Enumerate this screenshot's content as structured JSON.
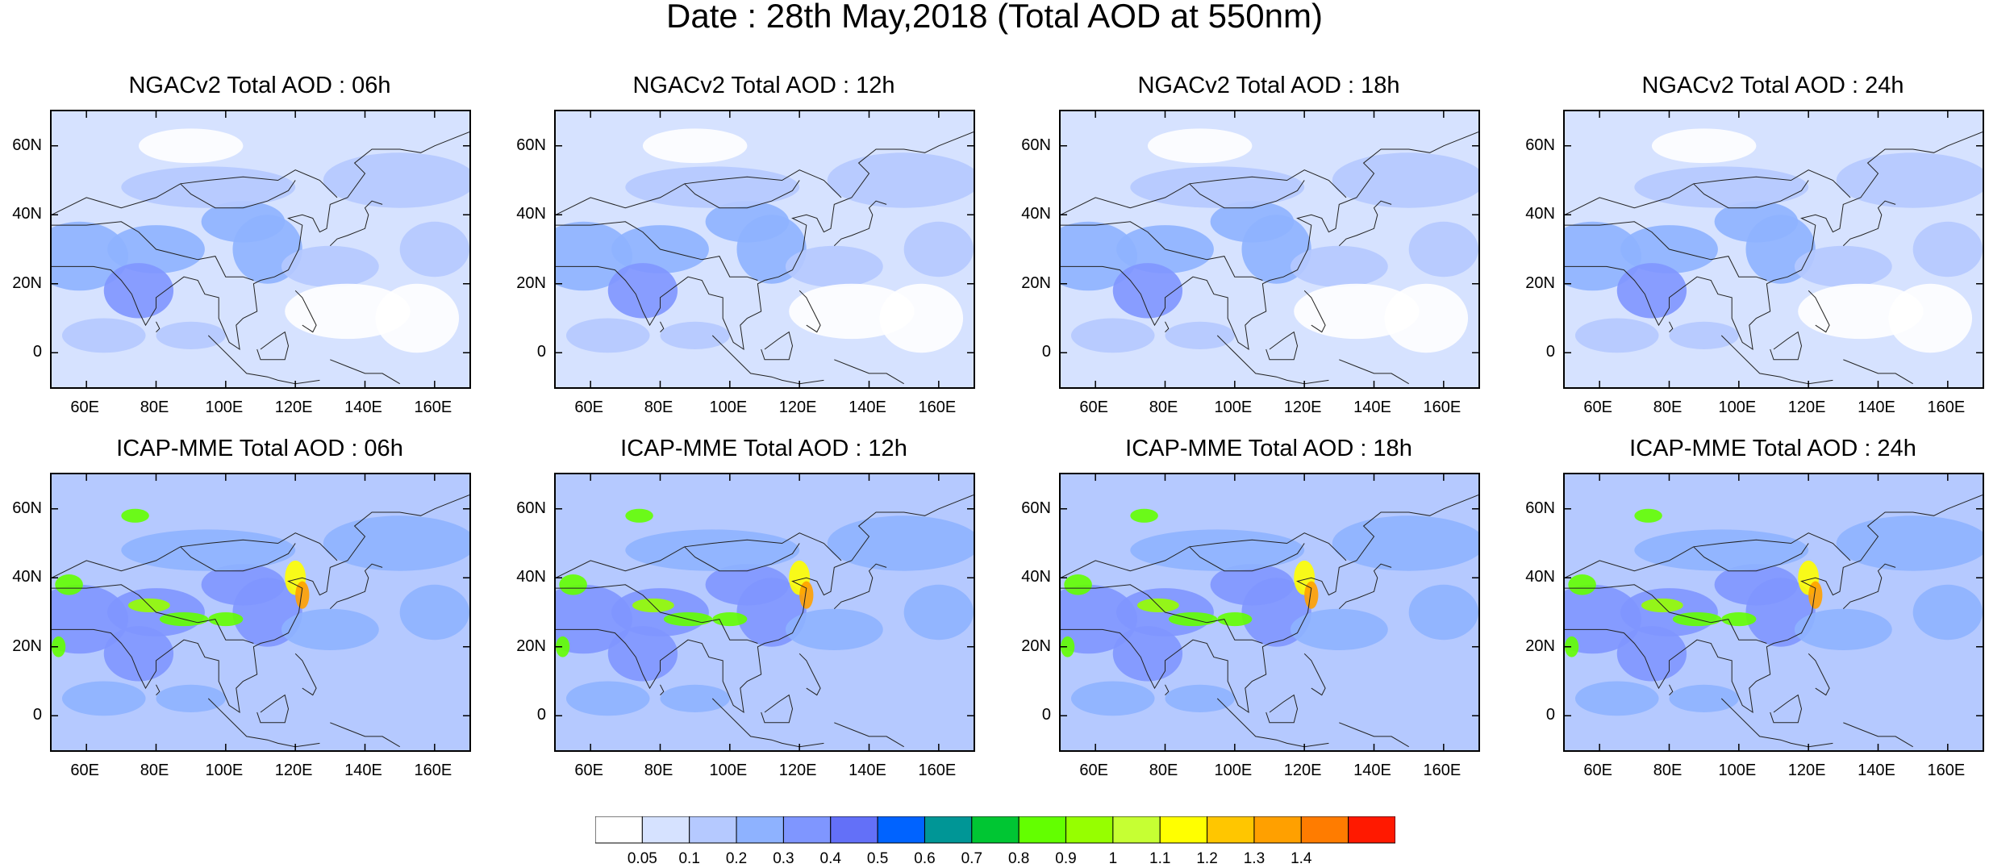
{
  "title": "Date : 28th May,2018 (Total AOD at 550nm)",
  "lat_ticks": [
    "60N",
    "40N",
    "20N",
    "0"
  ],
  "lon_ticks": [
    "60E",
    "80E",
    "100E",
    "120E",
    "140E",
    "160E"
  ],
  "map_extent": {
    "lon": [
      50,
      170
    ],
    "lat": [
      -10,
      70
    ]
  },
  "panels": [
    {
      "title": "NGACv2 Total AOD : 06h",
      "model": "NGACv2",
      "hour": "06h"
    },
    {
      "title": "NGACv2 Total AOD : 12h",
      "model": "NGACv2",
      "hour": "12h"
    },
    {
      "title": "NGACv2 Total AOD : 18h",
      "model": "NGACv2",
      "hour": "18h"
    },
    {
      "title": "NGACv2 Total AOD : 24h",
      "model": "NGACv2",
      "hour": "24h"
    },
    {
      "title": "ICAP-MME Total AOD : 06h",
      "model": "ICAP-MME",
      "hour": "06h"
    },
    {
      "title": "ICAP-MME Total AOD : 12h",
      "model": "ICAP-MME",
      "hour": "12h"
    },
    {
      "title": "ICAP-MME Total AOD : 18h",
      "model": "ICAP-MME",
      "hour": "18h"
    },
    {
      "title": "ICAP-MME Total AOD : 24h",
      "model": "ICAP-MME",
      "hour": "24h"
    }
  ],
  "colorbar": {
    "labels": [
      "0.05",
      "0.1",
      "0.2",
      "0.3",
      "0.4",
      "0.5",
      "0.6",
      "0.7",
      "0.8",
      "0.9",
      "1",
      "1.1",
      "1.2",
      "1.3",
      "1.4"
    ],
    "colors": [
      "#ffffff",
      "#d6e2ff",
      "#b5c9ff",
      "#8eb2ff",
      "#7f96ff",
      "#6370f8",
      "#0063ff",
      "#009696",
      "#00c633",
      "#63ff00",
      "#96ff00",
      "#c6ff33",
      "#ffff00",
      "#ffc600",
      "#ffa000",
      "#ff7c00",
      "#ff1900"
    ]
  }
}
